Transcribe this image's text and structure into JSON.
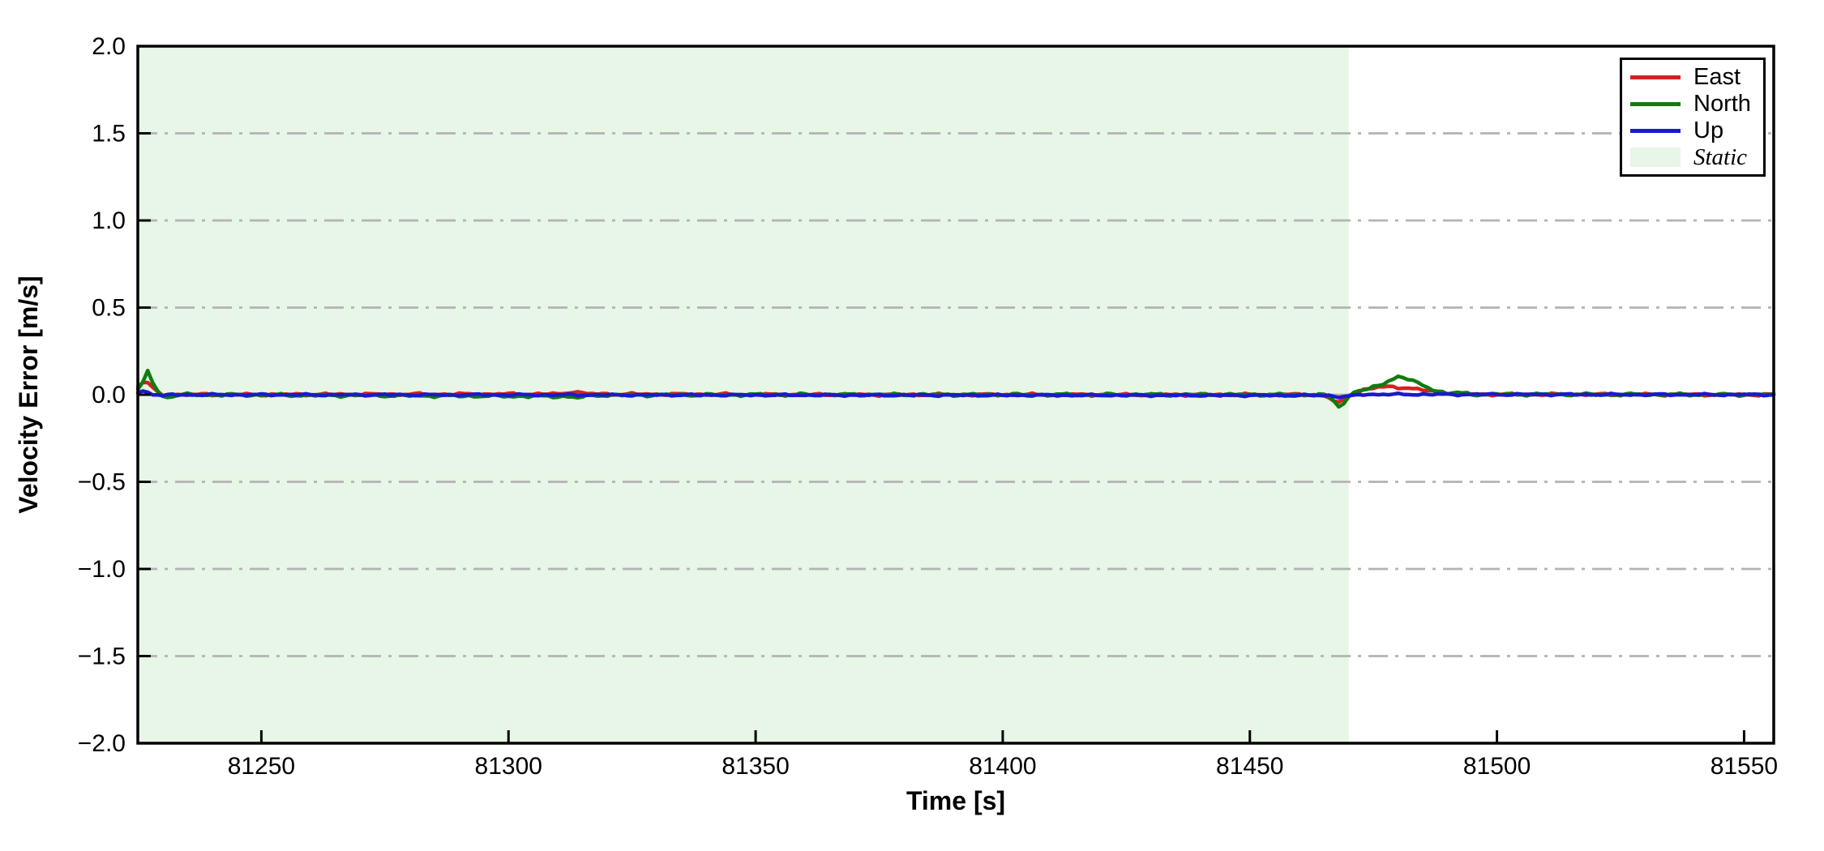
{
  "chart_data": {
    "type": "line",
    "title": "",
    "xlabel": "Time [s]",
    "ylabel": "Velocity Error [m/s]",
    "xlim": [
      81225,
      81556
    ],
    "ylim": [
      -2.0,
      2.0
    ],
    "xticks": [
      81250,
      81300,
      81350,
      81400,
      81450,
      81500,
      81550
    ],
    "xtick_labels": [
      "81250",
      "81300",
      "81350",
      "81400",
      "81450",
      "81500",
      "81550"
    ],
    "yticks": [
      2.0,
      1.5,
      1.0,
      0.5,
      0.0,
      -0.5,
      -1.0,
      -1.5,
      -2.0
    ],
    "ytick_labels": [
      "2.0",
      "1.5",
      "1.0",
      "0.5",
      "0.0",
      "−0.5",
      "−1.0",
      "−1.5",
      "−2.0"
    ],
    "grid": {
      "axis": "y",
      "values": [
        1.5,
        1.0,
        0.5,
        0.0,
        -0.5,
        -1.0,
        -1.5
      ],
      "color": "#b3b3b3",
      "style": "dash-dot"
    },
    "frame_color": "#000000",
    "static_region": {
      "label": "Static",
      "t_start": 81225,
      "t_end": 81470,
      "fill": "#e7f6e6"
    },
    "sample_step_s": 1,
    "series": [
      {
        "name": "East",
        "color": "#d62020",
        "noise_amp": 0.009,
        "noise_seed": 3.1,
        "keypoints": [
          [
            81225,
            0.045
          ],
          [
            81226.5,
            0.09
          ],
          [
            81228,
            0.035
          ],
          [
            81230,
            -0.005
          ],
          [
            81232,
            0.0
          ],
          [
            81311,
            0.004
          ],
          [
            81313,
            0.02
          ],
          [
            81316,
            0.004
          ],
          [
            81360,
            0.0
          ],
          [
            81464,
            0.0
          ],
          [
            81466,
            -0.015
          ],
          [
            81467.8,
            -0.055
          ],
          [
            81469.3,
            -0.02
          ],
          [
            81470.5,
            0.005
          ],
          [
            81473,
            0.028
          ],
          [
            81476,
            0.043
          ],
          [
            81479,
            0.045
          ],
          [
            81482,
            0.038
          ],
          [
            81485,
            0.027
          ],
          [
            81488,
            0.015
          ],
          [
            81491,
            0.007
          ],
          [
            81494,
            0.002
          ],
          [
            81556,
            0.0
          ]
        ]
      },
      {
        "name": "North",
        "color": "#0e7d0e",
        "noise_amp": 0.01,
        "noise_seed": 7.7,
        "keypoints": [
          [
            81225,
            0.025
          ],
          [
            81226,
            0.07
          ],
          [
            81227,
            0.135
          ],
          [
            81228.5,
            0.04
          ],
          [
            81230,
            -0.012
          ],
          [
            81232,
            -0.008
          ],
          [
            81234,
            0.0
          ],
          [
            81312,
            -0.01
          ],
          [
            81314,
            -0.018
          ],
          [
            81317,
            -0.003
          ],
          [
            81360,
            0.0
          ],
          [
            81464,
            0.0
          ],
          [
            81466,
            -0.01
          ],
          [
            81468.3,
            -0.074
          ],
          [
            81470,
            -0.015
          ],
          [
            81471.3,
            0.028
          ],
          [
            81472.5,
            0.022
          ],
          [
            81474,
            0.03
          ],
          [
            81477,
            0.065
          ],
          [
            81480,
            0.105
          ],
          [
            81482,
            0.09
          ],
          [
            81484,
            0.065
          ],
          [
            81486,
            0.042
          ],
          [
            81488,
            0.022
          ],
          [
            81490,
            0.006
          ],
          [
            81492,
            0.012
          ],
          [
            81495,
            0.002
          ],
          [
            81556,
            0.0
          ]
        ]
      },
      {
        "name": "Up",
        "color": "#1a1acc",
        "noise_amp": 0.007,
        "noise_seed": 12.9,
        "keypoints": [
          [
            81225,
            0.012
          ],
          [
            81226.5,
            0.022
          ],
          [
            81228,
            0.005
          ],
          [
            81230,
            -0.006
          ],
          [
            81232,
            0.0
          ],
          [
            81466,
            -0.004
          ],
          [
            81468.5,
            -0.014
          ],
          [
            81470.5,
            -0.008
          ],
          [
            81473,
            0.002
          ],
          [
            81556,
            0.0
          ]
        ]
      }
    ],
    "legend": {
      "position": "upper right",
      "entries": [
        {
          "label": "East",
          "type": "line",
          "color": "#d62020",
          "italic": false
        },
        {
          "label": "North",
          "type": "line",
          "color": "#0e7d0e",
          "italic": false
        },
        {
          "label": "Up",
          "type": "line",
          "color": "#1a1acc",
          "italic": false
        },
        {
          "label": "Static",
          "type": "patch",
          "color": "#e7f6e6",
          "italic": true
        }
      ]
    }
  }
}
